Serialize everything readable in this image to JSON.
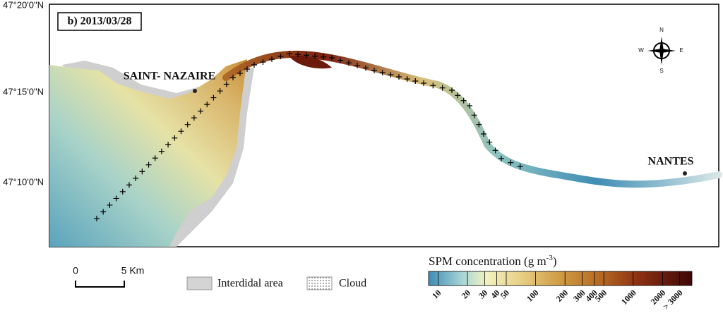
{
  "panel_label": "b) 2013/03/28",
  "lat_labels": [
    "47°20'0\"N",
    "47°15'0\"N",
    "47°10'0\"N"
  ],
  "places": [
    "SAINT- NAZAIRE",
    "NANTES"
  ],
  "compass": {
    "north": "N",
    "east": "E",
    "south": "S",
    "west": "W"
  },
  "scale_bar": {
    "start": "0",
    "end": "5 Km"
  },
  "legend": {
    "intertidal": "Interdidal area",
    "cloud": "Cloud"
  },
  "colorbar": {
    "title": "SPM concentration (g m",
    "title_superscript": "-3",
    "title_close": ")",
    "log": true,
    "lim": [
      8,
      4000
    ],
    "ticks": [
      10,
      20,
      30,
      40,
      50,
      100,
      200,
      300,
      400,
      500,
      1000,
      2000,
      {
        "value": 3000,
        "label": "> 3000"
      }
    ]
  }
}
